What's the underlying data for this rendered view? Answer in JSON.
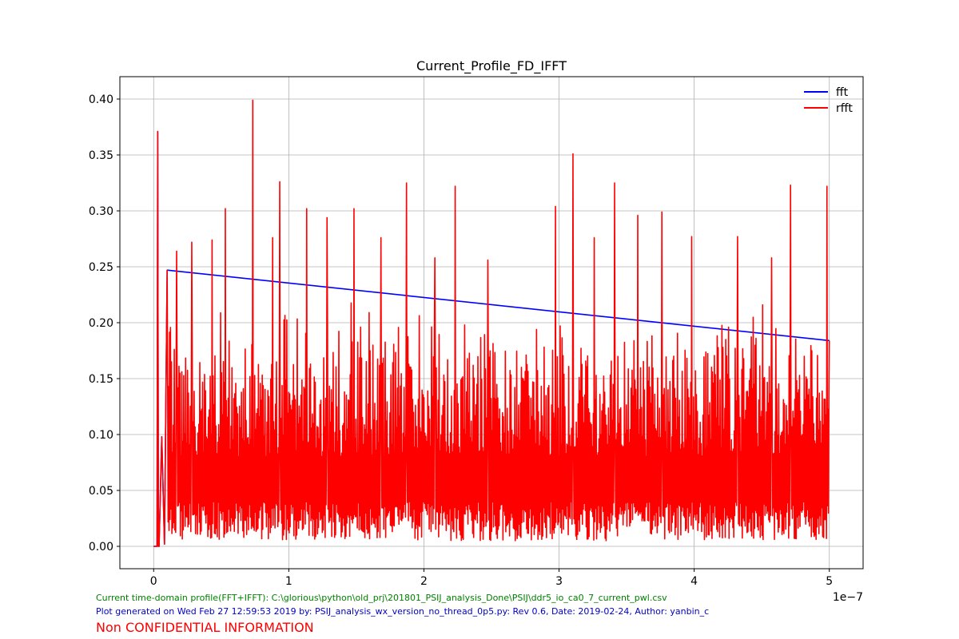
{
  "chart_data": {
    "type": "line",
    "title": "Current_Profile_FD_IFFT",
    "xlabel": "",
    "ylabel": "",
    "x_offset_text": "1e−7",
    "xlim": [
      -2.5e-08,
      5.25e-07
    ],
    "ylim": [
      -0.02,
      0.42
    ],
    "xticks": [
      0,
      1e-07,
      2e-07,
      3e-07,
      4e-07,
      5e-07
    ],
    "xtick_labels": [
      "0",
      "1",
      "2",
      "3",
      "4",
      "5"
    ],
    "yticks": [
      0.0,
      0.05,
      0.1,
      0.15,
      0.2,
      0.25,
      0.3,
      0.35,
      0.4
    ],
    "ytick_labels": [
      "0.00",
      "0.05",
      "0.10",
      "0.15",
      "0.20",
      "0.25",
      "0.30",
      "0.35",
      "0.40"
    ],
    "grid": true,
    "legend_position": "top-right",
    "series": [
      {
        "name": "fft",
        "color": "#0000ff",
        "x": [
          0,
          2e-09,
          2.5e-09,
          3e-09,
          3.5e-09,
          4e-09,
          6e-09,
          8e-09,
          1e-08,
          5e-07
        ],
        "y": [
          0.0,
          0.0,
          0.0,
          0.371,
          0.0,
          0.0,
          0.098,
          0.002,
          0.247,
          0.184
        ]
      },
      {
        "name": "rfft",
        "color": "#ff0000",
        "x": [
          0,
          2e-09,
          2.5e-09,
          3e-09,
          3.5e-09,
          4e-09,
          6e-09,
          8e-09,
          1e-08,
          5e-07
        ],
        "y": [
          0.0,
          0.0,
          0.0,
          0.371,
          0.0,
          0.0,
          0.098,
          0.002,
          0.247,
          0.184
        ],
        "dense_band": {
          "x_start": 1e-08,
          "x_end": 5e-07,
          "typical_min": 0.005,
          "typical_max": 0.22,
          "peaks": [
            [
              1.7e-08,
              0.264
            ],
            [
              2.8e-08,
              0.272
            ],
            [
              4.3e-08,
              0.274
            ],
            [
              5.3e-08,
              0.302
            ],
            [
              7.3e-08,
              0.399
            ],
            [
              8.8e-08,
              0.276
            ],
            [
              9.3e-08,
              0.326
            ],
            [
              1.13e-07,
              0.302
            ],
            [
              1.28e-07,
              0.294
            ],
            [
              1.48e-07,
              0.302
            ],
            [
              1.68e-07,
              0.276
            ],
            [
              1.87e-07,
              0.325
            ],
            [
              2.08e-07,
              0.258
            ],
            [
              2.23e-07,
              0.322
            ],
            [
              2.47e-07,
              0.256
            ],
            [
              2.97e-07,
              0.304
            ],
            [
              3.1e-07,
              0.351
            ],
            [
              3.26e-07,
              0.276
            ],
            [
              3.41e-07,
              0.325
            ],
            [
              3.58e-07,
              0.296
            ],
            [
              3.76e-07,
              0.299
            ],
            [
              3.98e-07,
              0.277
            ],
            [
              4.32e-07,
              0.277
            ],
            [
              4.57e-07,
              0.258
            ],
            [
              4.71e-07,
              0.323
            ],
            [
              4.98e-07,
              0.322
            ]
          ]
        }
      }
    ]
  },
  "footer": {
    "source_line": "Current time-domain profile(FFT+IFFT): C:\\glorious\\python\\old_prj\\201801_PSIJ_analysis_Done\\PSIJ\\ddr5_io_ca0_7_current_pwl.csv",
    "generated_line": "Plot generated on Wed Feb 27 12:59:53 2019 by: PSIJ_analysis_wx_version_no_thread_0p5.py: Rev 0.6, Date: 2019-02-24, Author: yanbin_c",
    "notice": "Non CONFIDENTIAL INFORMATION",
    "source_color": "#008000",
    "generated_color": "#0000cc",
    "notice_color": "#ff0000"
  }
}
